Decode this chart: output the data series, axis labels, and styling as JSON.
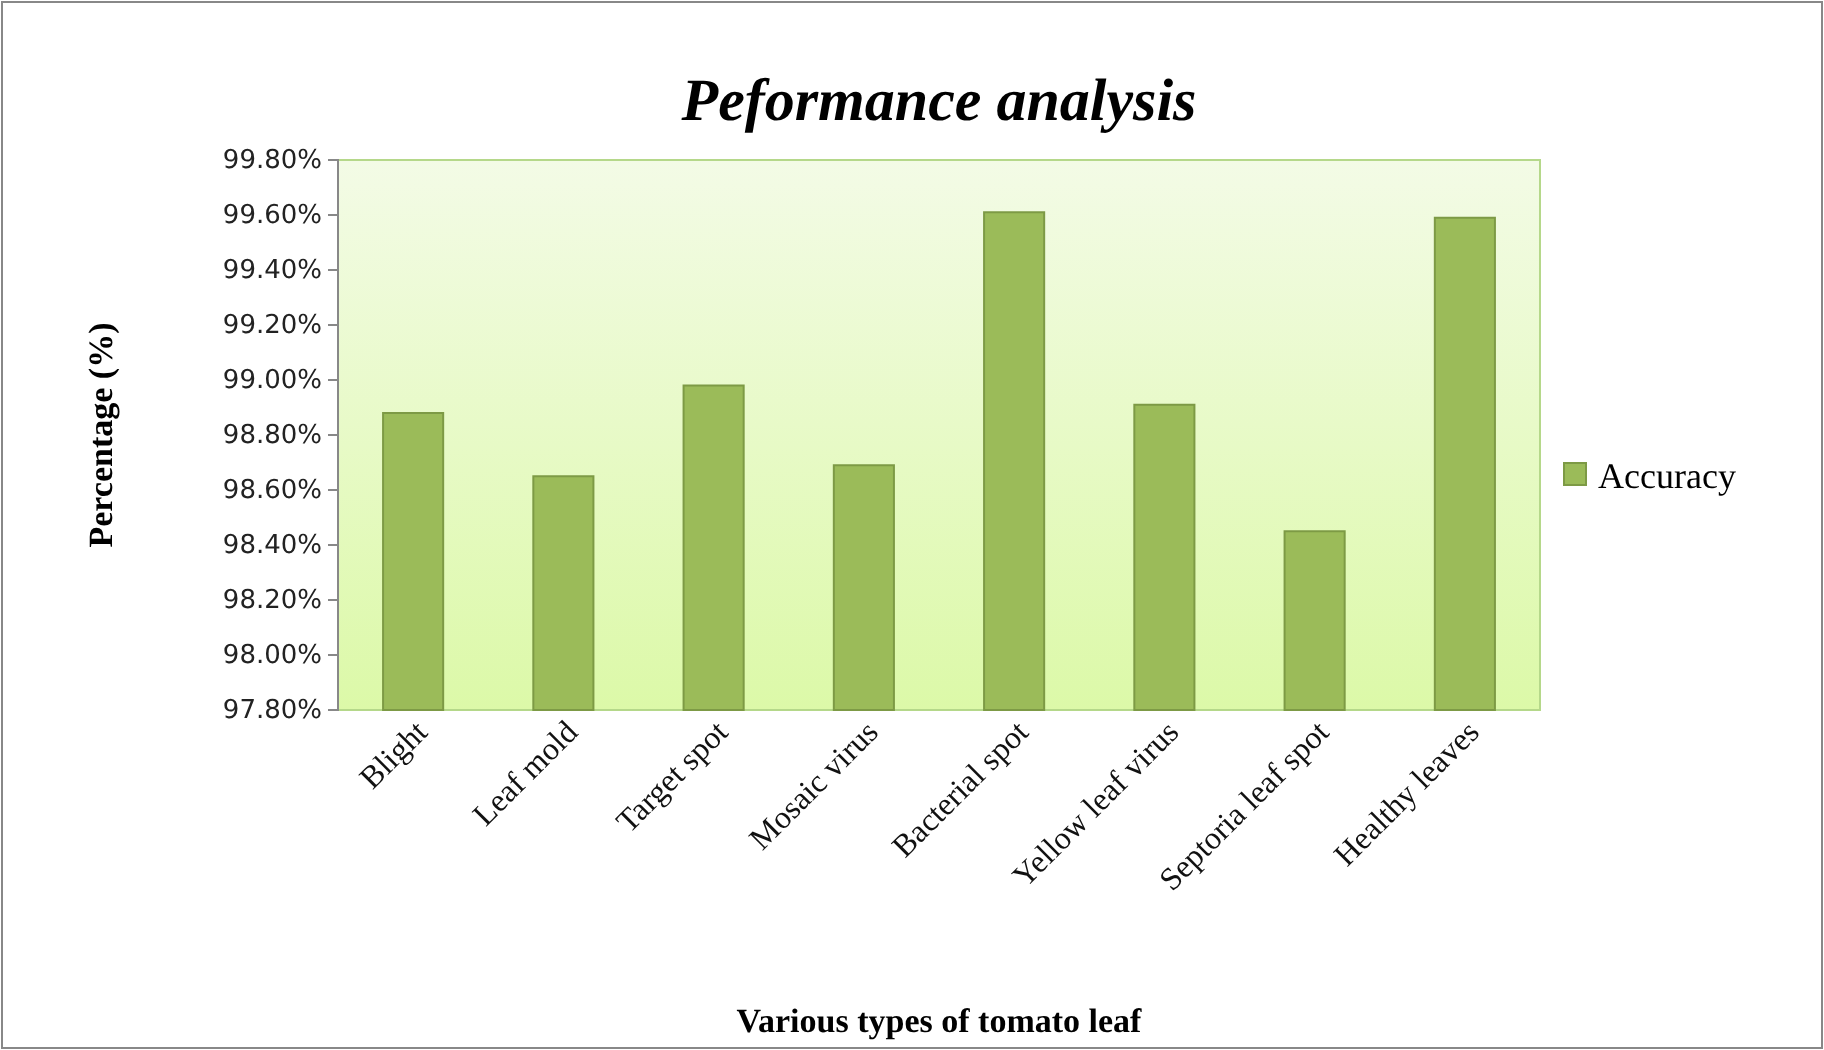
{
  "chart_data": {
    "type": "bar",
    "title": "Peformance analysis",
    "xlabel": "Various types of tomato leaf",
    "ylabel": "Percentage (%)",
    "categories": [
      "Blight",
      "Leaf mold",
      "Target spot",
      "Mosaic virus",
      "Bacterial spot",
      "Yellow leaf virus",
      "Septoria leaf spot",
      "Healthy leaves"
    ],
    "series": [
      {
        "name": "Accuracy",
        "color": "#9bbb59",
        "values": [
          98.88,
          98.65,
          98.98,
          98.69,
          99.61,
          98.91,
          98.45,
          99.59
        ]
      }
    ],
    "ylim": [
      97.8,
      99.8
    ],
    "yticks": [
      {
        "value": 97.8,
        "label": "97.80%"
      },
      {
        "value": 98.0,
        "label": "98.00%"
      },
      {
        "value": 98.2,
        "label": "98.20%"
      },
      {
        "value": 98.4,
        "label": "98.40%"
      },
      {
        "value": 98.6,
        "label": "98.60%"
      },
      {
        "value": 98.8,
        "label": "98.80%"
      },
      {
        "value": 99.0,
        "label": "99.00%"
      },
      {
        "value": 99.2,
        "label": "99.20%"
      },
      {
        "value": 99.4,
        "label": "99.40%"
      },
      {
        "value": 99.6,
        "label": "99.60%"
      },
      {
        "value": 99.8,
        "label": "99.80%"
      }
    ],
    "grid": false,
    "legend": "right"
  }
}
